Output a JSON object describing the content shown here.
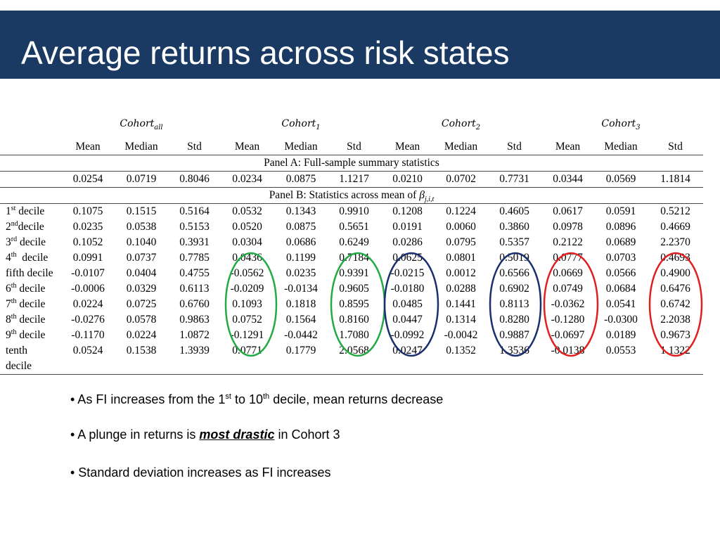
{
  "title": "Average returns across risk states",
  "table": {
    "cohorts": [
      {
        "base": "Cohort",
        "sub": "all"
      },
      {
        "base": "Cohort",
        "sub": "1"
      },
      {
        "base": "Cohort",
        "sub": "2"
      },
      {
        "base": "Cohort",
        "sub": "3"
      }
    ],
    "stat_headers": [
      "Mean",
      "Median",
      "Std",
      "Mean",
      "Median",
      "Std",
      "Mean",
      "Median",
      "Std",
      "Mean",
      "Median",
      "Std"
    ],
    "panel_a_title": "Panel A: Full-sample summary statistics",
    "panel_a_values": [
      "0.0254",
      "0.0719",
      "0.8046",
      "0.0234",
      "0.0875",
      "1.1217",
      "0.0210",
      "0.0702",
      "0.7731",
      "0.0344",
      "0.0569",
      "1.1814"
    ],
    "panel_b_title": "Panel B: Statistics across mean of ",
    "panel_b_beta": "β",
    "panel_b_beta_sub": "j,i,t",
    "rows": [
      {
        "label": "1",
        "sup": "st",
        "suffix": " decile",
        "values": [
          "0.1075",
          "0.1515",
          "0.5164",
          "0.0532",
          "0.1343",
          "0.9910",
          "0.1208",
          "0.1224",
          "0.4605",
          "0.0617",
          "0.0591",
          "0.5212"
        ]
      },
      {
        "label": "2",
        "sup": "nd",
        "suffix": "decile",
        "values": [
          "0.0235",
          "0.0538",
          "0.5153",
          "0.0520",
          "0.0875",
          "0.5651",
          "0.0191",
          "0.0060",
          "0.3860",
          "0.0978",
          "0.0896",
          "0.4669"
        ]
      },
      {
        "label": "3",
        "sup": "rd",
        "suffix": " decile",
        "values": [
          "0.1052",
          "0.1040",
          "0.3931",
          "0.0304",
          "0.0686",
          "0.6249",
          "0.0286",
          "0.0795",
          "0.5357",
          "0.2122",
          "0.0689",
          "2.2370"
        ]
      },
      {
        "label": "4",
        "sup": "th",
        "suffix": "  decile",
        "values": [
          "0.0991",
          "0.0737",
          "0.7785",
          "0.0436",
          "0.1199",
          "0.7184",
          "0.0625",
          "0.0801",
          "0.5019",
          "0.0777",
          "0.0703",
          "0.4693"
        ]
      },
      {
        "label": "fifth decile",
        "sup": "",
        "suffix": "",
        "values": [
          "-0.0107",
          "0.0404",
          "0.4755",
          "-0.0562",
          "0.0235",
          "0.9391",
          "-0.0215",
          "0.0012",
          "0.6566",
          "0.0669",
          "0.0566",
          "0.4900"
        ]
      },
      {
        "label": "6",
        "sup": "th",
        "suffix": " decile",
        "values": [
          "-0.0006",
          "0.0329",
          "0.6113",
          "-0.0209",
          "-0.0134",
          "0.9605",
          "-0.0180",
          "0.0288",
          "0.6902",
          "0.0749",
          "0.0684",
          "0.6476"
        ]
      },
      {
        "label": "7",
        "sup": "th",
        "suffix": " decile",
        "values": [
          "0.0224",
          "0.0725",
          "0.6760",
          "0.1093",
          "0.1818",
          "0.8595",
          "0.0485",
          "0.1441",
          "0.8113",
          "-0.0362",
          "0.0541",
          "0.6742"
        ]
      },
      {
        "label": "8",
        "sup": "th",
        "suffix": " decile",
        "values": [
          "-0.0276",
          "0.0578",
          "0.9863",
          "0.0752",
          "0.1564",
          "0.8160",
          "0.0447",
          "0.1314",
          "0.8280",
          "-0.1280",
          "-0.0300",
          "2.2038"
        ]
      },
      {
        "label": "9",
        "sup": "th",
        "suffix": " decile",
        "values": [
          "-0.1170",
          "0.0224",
          "1.0872",
          "-0.1291",
          "-0.0442",
          "1.7080",
          "-0.0992",
          "-0.0042",
          "0.9887",
          "-0.0697",
          "0.0189",
          "0.9673"
        ]
      },
      {
        "label": "tenth",
        "sup": "",
        "suffix": "",
        "values": [
          "0.0524",
          "0.1538",
          "1.3939",
          "0.0771",
          "0.1779",
          "2.0568",
          "0.0247",
          "0.1352",
          "1.3536",
          "-0.0138",
          "0.0553",
          "1.1322"
        ]
      }
    ],
    "last_label_cont": "decile"
  },
  "bullets": [
    {
      "pre": "• As FI increases from the 1",
      "sup1": "st",
      "mid": " to 10",
      "sup2": "th",
      "post": " decile, mean returns decrease"
    },
    {
      "pre": "• A plunge in returns is ",
      "emph": "most drastic",
      "post": " in Cohort 3"
    },
    {
      "pre": "• Standard deviation increases as FI increases"
    }
  ],
  "highlight_colors": {
    "green": "#22aa44",
    "navy": "#1a2f6e",
    "red": "#e02020"
  }
}
